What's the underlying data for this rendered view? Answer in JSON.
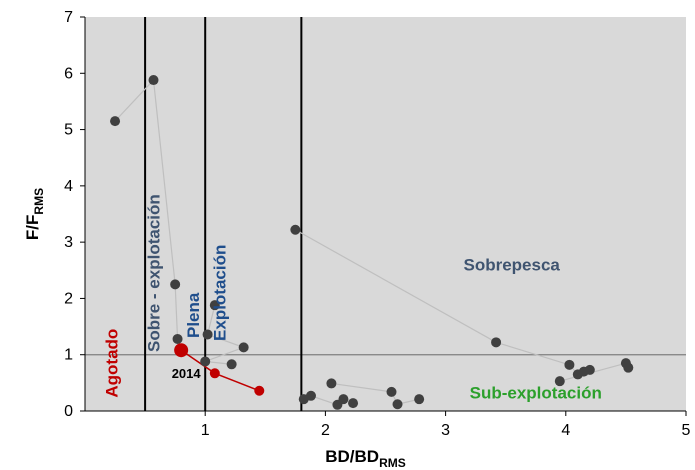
{
  "chart_data": {
    "type": "scatter",
    "xlim": [
      0,
      5
    ],
    "ylim": [
      0,
      7
    ],
    "x_ticks": [
      "1",
      "2",
      "3",
      "4",
      "5"
    ],
    "y_ticks": [
      "0",
      "1",
      "2",
      "3",
      "4",
      "5",
      "6",
      "7"
    ],
    "xlabel": {
      "main": "BD/BD",
      "sub": "RMS"
    },
    "ylabel": {
      "main": "F/F",
      "sub": "RMS"
    },
    "grid": false,
    "background": "#d9d9d9",
    "reference_lines": {
      "vertical_x": [
        0.5,
        1.0,
        1.8
      ],
      "horizontal_y": 1.0
    },
    "series": [
      {
        "color": "#404040",
        "line_color": "#bfbfbf",
        "trajectories": [
          [
            [
              0.25,
              5.15
            ],
            [
              0.57,
              5.88
            ],
            [
              0.75,
              2.25
            ],
            [
              0.77,
              1.28
            ],
            [
              0.8,
              1.08
            ]
          ],
          [
            [
              1.08,
              1.88
            ],
            [
              1.02,
              1.36
            ],
            [
              1.32,
              1.13
            ],
            [
              1.0,
              0.88
            ],
            [
              1.22,
              0.83
            ]
          ],
          [
            [
              1.75,
              3.22
            ],
            [
              3.42,
              1.22
            ],
            [
              4.03,
              0.82
            ],
            [
              4.1,
              0.65
            ],
            [
              4.15,
              0.7
            ],
            [
              4.2,
              0.73
            ]
          ],
          [
            [
              3.95,
              0.53
            ],
            [
              4.5,
              0.85
            ],
            [
              4.52,
              0.77
            ]
          ],
          [
            [
              2.05,
              0.49
            ],
            [
              2.55,
              0.34
            ],
            [
              2.6,
              0.12
            ],
            [
              2.78,
              0.21
            ]
          ],
          [
            [
              1.82,
              0.21
            ],
            [
              1.88,
              0.27
            ],
            [
              2.1,
              0.11
            ],
            [
              2.15,
              0.21
            ],
            [
              2.23,
              0.14
            ]
          ]
        ]
      },
      {
        "color": "#c00000",
        "line_color": "#c00000",
        "trajectories": [
          [
            [
              0.8,
              1.08
            ],
            [
              1.08,
              0.67
            ],
            [
              1.45,
              0.36
            ]
          ]
        ],
        "highlight": {
          "x": 0.8,
          "y": 1.08,
          "label": "2014"
        }
      }
    ],
    "annotations": [
      {
        "text": "Agotado",
        "color": "#c00000",
        "rotate": -90,
        "x": 0.27,
        "y": 0.85
      },
      {
        "text": "Sobre - explotación",
        "color": "#3f5470",
        "rotate": -90,
        "x": 0.62,
        "y": 2.45
      },
      {
        "text": "Plena",
        "color": "#1f4e8c",
        "rotate": -90,
        "x": 0.95,
        "y": 1.7
      },
      {
        "text": "Explotación",
        "color": "#1f4e8c",
        "rotate": -90,
        "x": 1.17,
        "y": 2.1
      },
      {
        "text": "Sobrepesca",
        "color": "#3f5470",
        "rotate": 0,
        "x": 3.55,
        "y": 2.5
      },
      {
        "text": "Sub-explotación",
        "color": "#2ca02c",
        "rotate": 0,
        "x": 3.75,
        "y": 0.22
      }
    ]
  }
}
